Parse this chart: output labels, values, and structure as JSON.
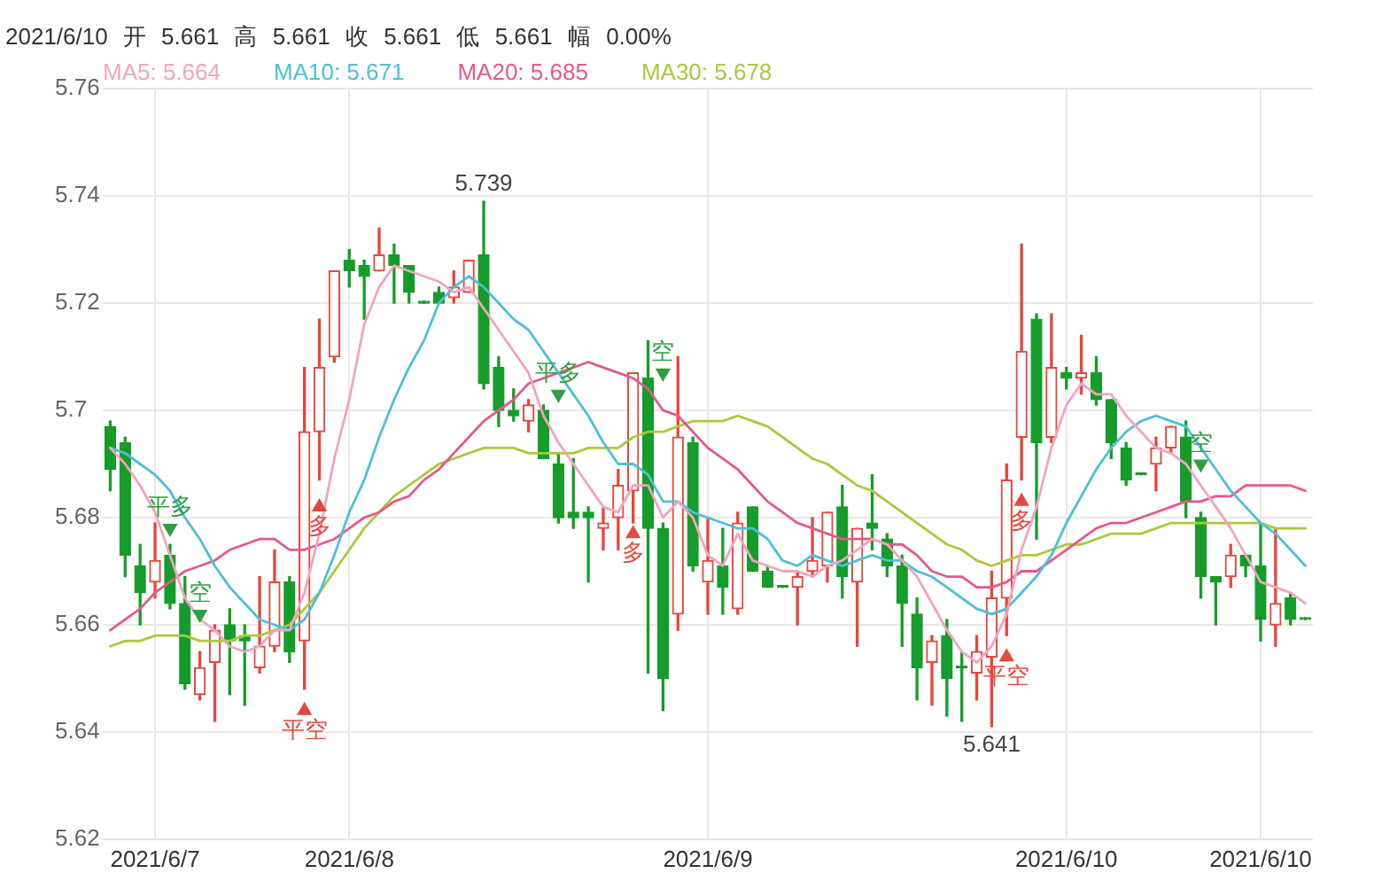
{
  "chart_data": {
    "type": "candlestick",
    "title": "2021/6/10 开 5.661 高 5.661 收 5.661 低 5.661 幅 0.00%",
    "categories": [
      null,
      null,
      null,
      "2021/6/7",
      null,
      null,
      null,
      null,
      null,
      null,
      null,
      null,
      null,
      null,
      null,
      null,
      "2021/6/8",
      null,
      null,
      null,
      null,
      null,
      null,
      null,
      null,
      null,
      null,
      null,
      null,
      null,
      null,
      null,
      null,
      null,
      null,
      null,
      null,
      null,
      null,
      null,
      "2021/6/9",
      null,
      null,
      null,
      null,
      null,
      null,
      null,
      null,
      null,
      null,
      null,
      null,
      null,
      null,
      null,
      null,
      null,
      null,
      null,
      null,
      null,
      null,
      null,
      "2021/6/10",
      null,
      null,
      null,
      null,
      null,
      null,
      null,
      null,
      null,
      null,
      null,
      null,
      "2021/6/10",
      null,
      null,
      null
    ],
    "ohlc": [
      [
        5.697,
        5.698,
        5.685,
        5.689
      ],
      [
        5.694,
        5.695,
        5.669,
        5.673
      ],
      [
        5.671,
        5.675,
        5.66,
        5.666
      ],
      [
        5.668,
        5.679,
        5.665,
        5.672
      ],
      [
        5.673,
        5.675,
        5.663,
        5.664
      ],
      [
        5.664,
        5.669,
        5.648,
        5.649
      ],
      [
        5.647,
        5.655,
        5.646,
        5.652
      ],
      [
        5.653,
        5.66,
        5.642,
        5.659
      ],
      [
        5.66,
        5.663,
        5.647,
        5.657
      ],
      [
        5.658,
        5.66,
        5.645,
        5.657
      ],
      [
        5.652,
        5.669,
        5.651,
        5.656
      ],
      [
        5.656,
        5.674,
        5.655,
        5.668
      ],
      [
        5.668,
        5.669,
        5.653,
        5.655
      ],
      [
        5.657,
        5.708,
        5.648,
        5.696
      ],
      [
        5.696,
        5.717,
        5.687,
        5.708
      ],
      [
        5.71,
        5.726,
        5.709,
        5.726
      ],
      [
        5.728,
        5.73,
        5.723,
        5.726
      ],
      [
        5.727,
        5.728,
        5.717,
        5.725
      ],
      [
        5.726,
        5.734,
        5.726,
        5.729
      ],
      [
        5.729,
        5.731,
        5.72,
        5.727
      ],
      [
        5.727,
        5.727,
        5.72,
        5.722
      ],
      [
        5.72,
        5.72,
        5.72,
        5.72
      ],
      [
        5.722,
        5.723,
        5.72,
        5.72
      ],
      [
        5.721,
        5.726,
        5.72,
        5.723
      ],
      [
        5.722,
        5.728,
        5.722,
        5.728
      ],
      [
        5.729,
        5.739,
        5.704,
        5.705
      ],
      [
        5.708,
        5.71,
        5.697,
        5.7
      ],
      [
        5.7,
        5.704,
        5.698,
        5.699
      ],
      [
        5.698,
        5.702,
        5.696,
        5.701
      ],
      [
        5.7,
        5.701,
        5.691,
        5.691
      ],
      [
        5.69,
        5.692,
        5.679,
        5.68
      ],
      [
        5.681,
        5.691,
        5.678,
        5.68
      ],
      [
        5.681,
        5.682,
        5.668,
        5.68
      ],
      [
        5.678,
        5.682,
        5.674,
        5.679
      ],
      [
        5.68,
        5.689,
        5.674,
        5.686
      ],
      [
        5.685,
        5.707,
        5.679,
        5.707
      ],
      [
        5.706,
        5.713,
        5.651,
        5.678
      ],
      [
        5.678,
        5.679,
        5.644,
        5.65
      ],
      [
        5.662,
        5.71,
        5.659,
        5.695
      ],
      [
        5.694,
        5.695,
        5.67,
        5.671
      ],
      [
        5.668,
        5.68,
        5.662,
        5.672
      ],
      [
        5.671,
        5.678,
        5.662,
        5.667
      ],
      [
        5.663,
        5.681,
        5.662,
        5.679
      ],
      [
        5.682,
        5.682,
        5.67,
        5.67
      ],
      [
        5.67,
        5.671,
        5.667,
        5.667
      ],
      [
        5.667,
        5.667,
        5.667,
        5.667
      ],
      [
        5.667,
        5.67,
        5.66,
        5.669
      ],
      [
        5.67,
        5.68,
        5.669,
        5.672
      ],
      [
        5.671,
        5.681,
        5.668,
        5.681
      ],
      [
        5.682,
        5.686,
        5.665,
        5.669
      ],
      [
        5.668,
        5.678,
        5.656,
        5.678
      ],
      [
        5.679,
        5.688,
        5.674,
        5.678
      ],
      [
        5.676,
        5.677,
        5.669,
        5.671
      ],
      [
        5.671,
        5.673,
        5.656,
        5.664
      ],
      [
        5.662,
        5.665,
        5.646,
        5.652
      ],
      [
        5.653,
        5.658,
        5.645,
        5.657
      ],
      [
        5.658,
        5.661,
        5.643,
        5.65
      ],
      [
        5.652,
        5.655,
        5.642,
        5.652
      ],
      [
        5.651,
        5.658,
        5.646,
        5.655
      ],
      [
        5.654,
        5.67,
        5.641,
        5.665
      ],
      [
        5.665,
        5.69,
        5.658,
        5.687
      ],
      [
        5.695,
        5.731,
        5.687,
        5.711
      ],
      [
        5.717,
        5.718,
        5.676,
        5.694
      ],
      [
        5.695,
        5.718,
        5.694,
        5.708
      ],
      [
        5.707,
        5.708,
        5.704,
        5.706
      ],
      [
        5.706,
        5.714,
        5.703,
        5.707
      ],
      [
        5.707,
        5.71,
        5.701,
        5.702
      ],
      [
        5.702,
        5.702,
        5.691,
        5.694
      ],
      [
        5.693,
        5.694,
        5.686,
        5.687
      ],
      [
        5.688,
        5.688,
        5.688,
        5.688
      ],
      [
        5.69,
        5.695,
        5.685,
        5.693
      ],
      [
        5.693,
        5.697,
        5.692,
        5.697
      ],
      [
        5.695,
        5.698,
        5.68,
        5.683
      ],
      [
        5.68,
        5.681,
        5.665,
        5.669
      ],
      [
        5.669,
        5.669,
        5.66,
        5.668
      ],
      [
        5.669,
        5.675,
        5.667,
        5.673
      ],
      [
        5.673,
        5.673,
        5.669,
        5.671
      ],
      [
        5.671,
        5.679,
        5.657,
        5.661
      ],
      [
        5.66,
        5.678,
        5.656,
        5.664
      ],
      [
        5.665,
        5.666,
        5.66,
        5.661
      ],
      [
        5.661,
        5.661,
        5.661,
        5.661
      ]
    ],
    "colors": [
      "#169c2a",
      "#169c2a",
      "#169c2a",
      "#e8453c",
      "#169c2a",
      "#169c2a",
      "#e8453c",
      "#e8453c",
      "#169c2a",
      "#169c2a",
      "#e8453c",
      "#e8453c",
      "#169c2a",
      "#e8453c",
      "#e8453c",
      "#e8453c",
      "#169c2a",
      "#169c2a",
      "#e8453c",
      "#169c2a",
      "#169c2a",
      "#169c2a",
      "#169c2a",
      "#e8453c",
      "#e8453c",
      "#169c2a",
      "#169c2a",
      "#169c2a",
      "#e8453c",
      "#169c2a",
      "#169c2a",
      "#169c2a",
      "#169c2a",
      "#e8453c",
      "#e8453c",
      "#e8453c",
      "#169c2a",
      "#169c2a",
      "#e8453c",
      "#169c2a",
      "#e8453c",
      "#169c2a",
      "#e8453c",
      "#169c2a",
      "#169c2a",
      "#169c2a",
      "#e8453c",
      "#e8453c",
      "#e8453c",
      "#169c2a",
      "#e8453c",
      "#169c2a",
      "#169c2a",
      "#169c2a",
      "#169c2a",
      "#e8453c",
      "#169c2a",
      "#169c2a",
      "#e8453c",
      "#e8453c",
      "#e8453c",
      "#e8453c",
      "#169c2a",
      "#e8453c",
      "#169c2a",
      "#e8453c",
      "#169c2a",
      "#169c2a",
      "#169c2a",
      "#169c2a",
      "#e8453c",
      "#e8453c",
      "#169c2a",
      "#169c2a",
      "#169c2a",
      "#e8453c",
      "#169c2a",
      "#169c2a",
      "#e8453c",
      "#169c2a",
      "#169c2a"
    ],
    "series": [
      {
        "type": "line",
        "name": "MA5: 5.664",
        "color": "#f3a3bf",
        "values": [
          5.693,
          5.69,
          5.686,
          5.681,
          5.673,
          5.665,
          5.661,
          5.659,
          5.656,
          5.655,
          5.656,
          5.659,
          5.659,
          5.666,
          5.677,
          5.691,
          5.702,
          5.716,
          5.723,
          5.727,
          5.726,
          5.725,
          5.724,
          5.722,
          5.723,
          5.719,
          5.715,
          5.711,
          5.707,
          5.699,
          5.694,
          5.69,
          5.686,
          5.682,
          5.681,
          5.686,
          5.686,
          5.68,
          5.683,
          5.68,
          5.673,
          5.671,
          5.677,
          5.672,
          5.671,
          5.67,
          5.67,
          5.669,
          5.671,
          5.672,
          5.674,
          5.676,
          5.675,
          5.672,
          5.669,
          5.664,
          5.659,
          5.655,
          5.653,
          5.656,
          5.662,
          5.674,
          5.682,
          5.693,
          5.701,
          5.705,
          5.703,
          5.703,
          5.699,
          5.696,
          5.693,
          5.692,
          5.69,
          5.686,
          5.682,
          5.678,
          5.673,
          5.668,
          5.667,
          5.666,
          5.664
        ]
      },
      {
        "type": "line",
        "name": "MA10: 5.671",
        "color": "#4cc0d6",
        "values": [
          5.693,
          5.692,
          5.69,
          5.688,
          5.685,
          5.68,
          5.676,
          5.671,
          5.667,
          5.664,
          5.661,
          5.66,
          5.659,
          5.661,
          5.666,
          5.673,
          5.681,
          5.687,
          5.695,
          5.702,
          5.708,
          5.713,
          5.72,
          5.723,
          5.725,
          5.723,
          5.72,
          5.717,
          5.715,
          5.711,
          5.707,
          5.703,
          5.699,
          5.694,
          5.69,
          5.69,
          5.688,
          5.683,
          5.683,
          5.681,
          5.68,
          5.679,
          5.678,
          5.678,
          5.676,
          5.672,
          5.671,
          5.673,
          5.672,
          5.671,
          5.672,
          5.673,
          5.672,
          5.672,
          5.67,
          5.669,
          5.667,
          5.665,
          5.663,
          5.662,
          5.663,
          5.666,
          5.669,
          5.673,
          5.679,
          5.684,
          5.689,
          5.693,
          5.696,
          5.698,
          5.699,
          5.698,
          5.697,
          5.693,
          5.689,
          5.685,
          5.682,
          5.679,
          5.677,
          5.674,
          5.671
        ]
      },
      {
        "type": "line",
        "name": "MA20: 5.685",
        "color": "#e6588c",
        "values": [
          5.659,
          5.661,
          5.663,
          5.666,
          5.668,
          5.67,
          5.671,
          5.672,
          5.674,
          5.675,
          5.676,
          5.676,
          5.674,
          5.674,
          5.675,
          5.676,
          5.678,
          5.68,
          5.681,
          5.683,
          5.684,
          5.687,
          5.689,
          5.692,
          5.695,
          5.698,
          5.7,
          5.702,
          5.705,
          5.706,
          5.707,
          5.708,
          5.709,
          5.708,
          5.707,
          5.706,
          5.704,
          5.7,
          5.699,
          5.696,
          5.693,
          5.691,
          5.689,
          5.686,
          5.683,
          5.681,
          5.679,
          5.678,
          5.677,
          5.676,
          5.676,
          5.676,
          5.675,
          5.675,
          5.673,
          5.67,
          5.669,
          5.669,
          5.667,
          5.667,
          5.668,
          5.67,
          5.67,
          5.672,
          5.674,
          5.676,
          5.678,
          5.679,
          5.679,
          5.68,
          5.681,
          5.682,
          5.683,
          5.683,
          5.684,
          5.684,
          5.686,
          5.686,
          5.686,
          5.686,
          5.685
        ]
      },
      {
        "type": "line",
        "name": "MA30: 5.678",
        "color": "#a9c93c",
        "values": [
          5.656,
          5.657,
          5.657,
          5.658,
          5.658,
          5.658,
          5.657,
          5.657,
          5.657,
          5.658,
          5.658,
          5.659,
          5.66,
          5.663,
          5.666,
          5.67,
          5.674,
          5.678,
          5.681,
          5.684,
          5.686,
          5.688,
          5.69,
          5.691,
          5.692,
          5.693,
          5.693,
          5.693,
          5.692,
          5.692,
          5.692,
          5.692,
          5.693,
          5.693,
          5.693,
          5.695,
          5.696,
          5.696,
          5.697,
          5.698,
          5.698,
          5.698,
          5.699,
          5.698,
          5.697,
          5.695,
          5.693,
          5.691,
          5.69,
          5.688,
          5.686,
          5.685,
          5.683,
          5.681,
          5.679,
          5.677,
          5.675,
          5.674,
          5.672,
          5.671,
          5.672,
          5.673,
          5.673,
          5.674,
          5.675,
          5.675,
          5.676,
          5.677,
          5.677,
          5.677,
          5.678,
          5.679,
          5.679,
          5.679,
          5.679,
          5.679,
          5.679,
          5.679,
          5.678,
          5.678,
          5.678
        ]
      },
      {
        "type": "scatter",
        "color": "#2f9e44",
        "marker": "triangle",
        "values": [
          null,
          null,
          null,
          null,
          5.678,
          null,
          5.662,
          null,
          null,
          null,
          null,
          null,
          null,
          null,
          null,
          null,
          null,
          null,
          null,
          null,
          null,
          null,
          null,
          null,
          null,
          null,
          null,
          null,
          null,
          null,
          5.703,
          null,
          null,
          null,
          null,
          null,
          null,
          5.707,
          null,
          null,
          null,
          null,
          null,
          null,
          null,
          null,
          null,
          null,
          null,
          null,
          null,
          null,
          null,
          null,
          null,
          null,
          null,
          null,
          null,
          null,
          null,
          null,
          null,
          null,
          null,
          null,
          null,
          null,
          null,
          null,
          null,
          null,
          null,
          5.69,
          null,
          null,
          null,
          null,
          null,
          null,
          null
        ],
        "value_labels": [
          null,
          null,
          null,
          null,
          "平多",
          null,
          "空",
          null,
          null,
          null,
          null,
          null,
          null,
          null,
          null,
          null,
          null,
          null,
          null,
          null,
          null,
          null,
          null,
          null,
          null,
          null,
          null,
          null,
          null,
          null,
          "平多",
          null,
          null,
          null,
          null,
          null,
          null,
          "空",
          null,
          null,
          null,
          null,
          null,
          null,
          null,
          null,
          null,
          null,
          null,
          null,
          null,
          null,
          null,
          null,
          null,
          null,
          null,
          null,
          null,
          null,
          null,
          null,
          null,
          null,
          null,
          null,
          null,
          null,
          null,
          null,
          null,
          null,
          null,
          "空",
          null,
          null,
          null,
          null,
          null,
          null,
          null
        ]
      },
      {
        "type": "scatter",
        "color": "#e5483f",
        "marker": "triangle",
        "values": [
          null,
          null,
          null,
          null,
          null,
          null,
          null,
          null,
          null,
          null,
          null,
          null,
          null,
          5.644,
          5.682,
          null,
          null,
          null,
          null,
          null,
          null,
          null,
          null,
          null,
          null,
          null,
          null,
          null,
          null,
          null,
          null,
          null,
          null,
          null,
          null,
          5.677,
          null,
          null,
          null,
          null,
          null,
          null,
          null,
          null,
          null,
          null,
          null,
          null,
          null,
          null,
          null,
          null,
          null,
          null,
          null,
          null,
          null,
          null,
          null,
          null,
          5.654,
          5.683,
          null,
          null,
          null,
          null,
          null,
          null,
          null,
          null,
          null,
          null,
          null,
          null,
          null,
          null,
          null,
          null,
          null,
          null,
          null
        ],
        "value_labels": [
          null,
          null,
          null,
          null,
          null,
          null,
          null,
          null,
          null,
          null,
          null,
          null,
          null,
          "平空",
          "多",
          null,
          null,
          null,
          null,
          null,
          null,
          null,
          null,
          null,
          null,
          null,
          null,
          null,
          null,
          null,
          null,
          null,
          null,
          null,
          null,
          "多",
          null,
          null,
          null,
          null,
          null,
          null,
          null,
          null,
          null,
          null,
          null,
          null,
          null,
          null,
          null,
          null,
          null,
          null,
          null,
          null,
          null,
          null,
          null,
          null,
          "平空",
          "多",
          null,
          null,
          null,
          null,
          null,
          null,
          null,
          null,
          null,
          null,
          null,
          null,
          null,
          null,
          null,
          null,
          null,
          null,
          null
        ]
      }
    ],
    "annotations": [
      {
        "text": "5.739",
        "y": 5.739
      },
      {
        "text": "5.641",
        "y": 5.641
      }
    ],
    "ylim": [
      5.62,
      5.76
    ],
    "yticks": [
      5.62,
      5.64,
      5.66,
      5.68,
      5.7,
      5.72,
      5.74,
      5.76
    ],
    "grid": true,
    "legend": "top left",
    "marker": "none",
    "line_style": "solid"
  }
}
